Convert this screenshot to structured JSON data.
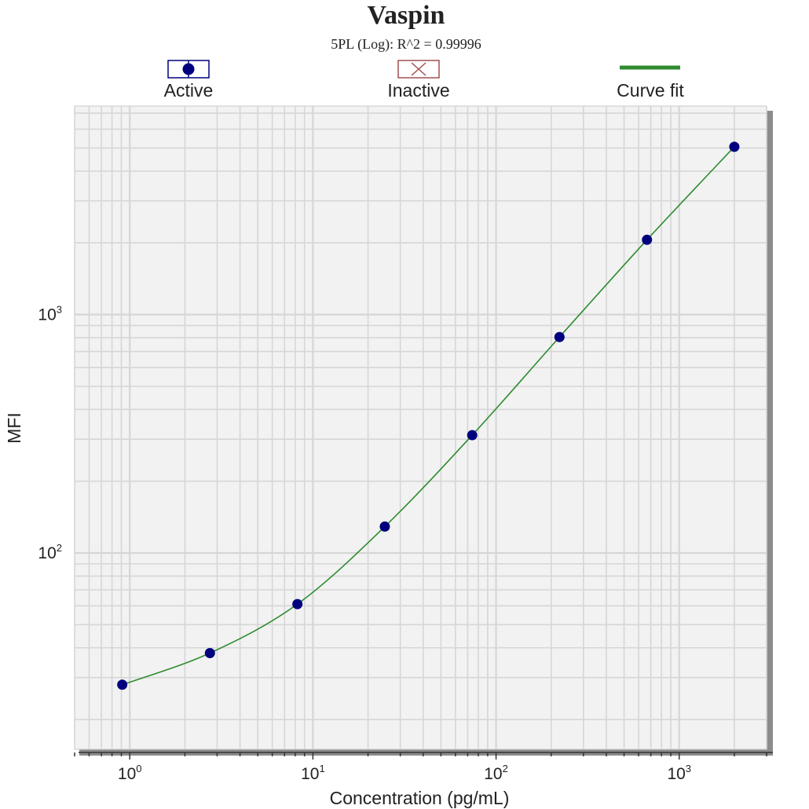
{
  "chart_data": {
    "type": "scatter",
    "title": "Vaspin",
    "subtitle": "5PL (Log): R^2 = 0.99996",
    "xlabel": "Concentration (pg/mL)",
    "ylabel": "MFI",
    "x_scale": "log",
    "y_scale": "log",
    "xlim": [
      0.5,
      3000
    ],
    "ylim": [
      15,
      7500
    ],
    "x_ticks": [
      {
        "base": "10",
        "exp": "0",
        "value": 1
      },
      {
        "base": "10",
        "exp": "1",
        "value": 10
      },
      {
        "base": "10",
        "exp": "2",
        "value": 100
      },
      {
        "base": "10",
        "exp": "3",
        "value": 1000
      }
    ],
    "y_ticks": [
      {
        "base": "10",
        "exp": "2",
        "value": 100
      },
      {
        "base": "10",
        "exp": "3",
        "value": 1000
      }
    ],
    "grid": true,
    "legend": {
      "position": "top",
      "entries": [
        {
          "label": "Active",
          "marker": "filled-circle-box"
        },
        {
          "label": "Inactive",
          "marker": "x-box"
        },
        {
          "label": "Curve fit",
          "marker": "line"
        }
      ]
    },
    "series": [
      {
        "name": "Active",
        "x": [
          0.91,
          2.74,
          8.23,
          24.7,
          74.1,
          222,
          667,
          2000
        ],
        "y": [
          28,
          38,
          61,
          129,
          312,
          805,
          2060,
          5060
        ]
      }
    ],
    "colors": {
      "active": "#00007f",
      "inactive": "#a05050",
      "curve": "#2e8b2e",
      "plot_background": "#f2f2f2",
      "grid": "#d6d6d6",
      "shadow": "#8c8c8c"
    }
  }
}
